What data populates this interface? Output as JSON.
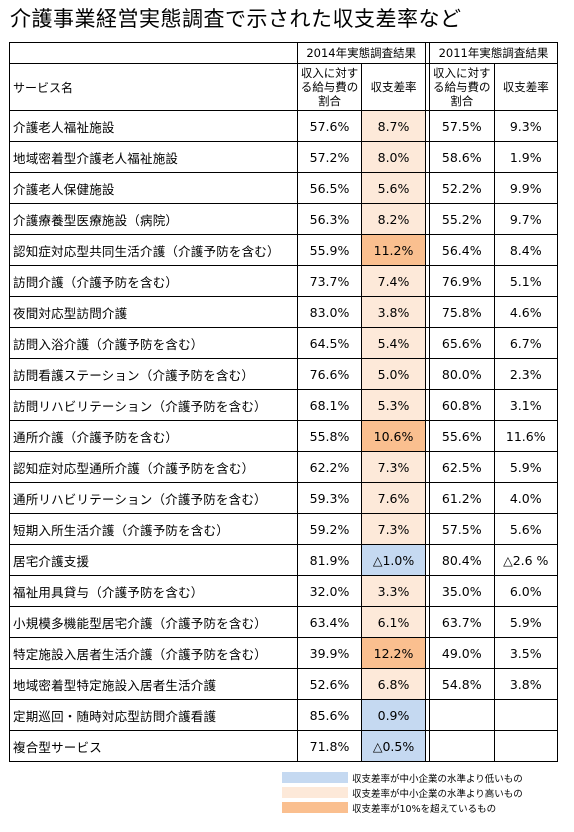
{
  "title": "介護事業経営実態調査で示された収支差率など",
  "colors": {
    "low": "#c5d9f1",
    "high": "#fde9d9",
    "over": "#fabf8f"
  },
  "header": {
    "service_label": "サービス名",
    "year_2014": "2014年実態調査結果",
    "year_2011": "2011年実態調査結果",
    "ratio_label": "収入に対する給与費の割合",
    "rate_label": "収支差率"
  },
  "rows": [
    {
      "name": "介護老人福祉施設",
      "r2014": "57.6%",
      "d2014": "8.7%",
      "hl": "high",
      "r2011": "57.5%",
      "d2011": "9.3%"
    },
    {
      "name": "地域密着型介護老人福祉施設",
      "r2014": "57.2%",
      "d2014": "8.0%",
      "hl": "high",
      "r2011": "58.6%",
      "d2011": "1.9%"
    },
    {
      "name": "介護老人保健施設",
      "r2014": "56.5%",
      "d2014": "5.6%",
      "hl": "high",
      "r2011": "52.2%",
      "d2011": "9.9%"
    },
    {
      "name": "介護療養型医療施設（病院）",
      "r2014": "56.3%",
      "d2014": "8.2%",
      "hl": "high",
      "r2011": "55.2%",
      "d2011": "9.7%"
    },
    {
      "name": "認知症対応型共同生活介護（介護予防を含む）",
      "r2014": "55.9%",
      "d2014": "11.2%",
      "hl": "over",
      "r2011": "56.4%",
      "d2011": "8.4%"
    },
    {
      "name": "訪問介護（介護予防を含む）",
      "r2014": "73.7%",
      "d2014": "7.4%",
      "hl": "high",
      "r2011": "76.9%",
      "d2011": "5.1%"
    },
    {
      "name": "夜間対応型訪問介護",
      "r2014": "83.0%",
      "d2014": "3.8%",
      "hl": "high",
      "r2011": "75.8%",
      "d2011": "4.6%"
    },
    {
      "name": "訪問入浴介護（介護予防を含む）",
      "r2014": "64.5%",
      "d2014": "5.4%",
      "hl": "high",
      "r2011": "65.6%",
      "d2011": "6.7%"
    },
    {
      "name": "訪問看護ステーション（介護予防を含む）",
      "r2014": "76.6%",
      "d2014": "5.0%",
      "hl": "high",
      "r2011": "80.0%",
      "d2011": "2.3%"
    },
    {
      "name": "訪問リハビリテーション（介護予防を含む）",
      "r2014": "68.1%",
      "d2014": "5.3%",
      "hl": "high",
      "r2011": "60.8%",
      "d2011": "3.1%"
    },
    {
      "name": "通所介護（介護予防を含む）",
      "r2014": "55.8%",
      "d2014": "10.6%",
      "hl": "over",
      "r2011": "55.6%",
      "d2011": "11.6%"
    },
    {
      "name": "認知症対応型通所介護（介護予防を含む）",
      "r2014": "62.2%",
      "d2014": "7.3%",
      "hl": "high",
      "r2011": "62.5%",
      "d2011": "5.9%"
    },
    {
      "name": "通所リハビリテーション（介護予防を含む）",
      "r2014": "59.3%",
      "d2014": "7.6%",
      "hl": "high",
      "r2011": "61.2%",
      "d2011": "4.0%"
    },
    {
      "name": "短期入所生活介護（介護予防を含む）",
      "r2014": "59.2%",
      "d2014": "7.3%",
      "hl": "high",
      "r2011": "57.5%",
      "d2011": "5.6%"
    },
    {
      "name": "居宅介護支援",
      "r2014": "81.9%",
      "d2014": "△1.0%",
      "hl": "low",
      "r2011": "80.4%",
      "d2011": "△2.6 %"
    },
    {
      "name": "福祉用具貸与（介護予防を含む）",
      "r2014": "32.0%",
      "d2014": "3.3%",
      "hl": "high",
      "r2011": "35.0%",
      "d2011": "6.0%"
    },
    {
      "name": "小規模多機能型居宅介護（介護予防を含む）",
      "r2014": "63.4%",
      "d2014": "6.1%",
      "hl": "high",
      "r2011": "63.7%",
      "d2011": "5.9%"
    },
    {
      "name": "特定施設入居者生活介護（介護予防を含む）",
      "r2014": "39.9%",
      "d2014": "12.2%",
      "hl": "over",
      "r2011": "49.0%",
      "d2011": "3.5%"
    },
    {
      "name": "地域密着型特定施設入居者生活介護",
      "r2014": "52.6%",
      "d2014": "6.8%",
      "hl": "high",
      "r2011": "54.8%",
      "d2011": "3.8%"
    },
    {
      "name": "定期巡回・随時対応型訪問介護看護",
      "r2014": "85.6%",
      "d2014": "0.9%",
      "hl": "low",
      "r2011": "",
      "d2011": ""
    },
    {
      "name": "複合型サービス",
      "r2014": "71.8%",
      "d2014": "△0.5%",
      "hl": "low",
      "r2011": "",
      "d2011": ""
    }
  ],
  "legend": [
    {
      "key": "low",
      "text": "収支差率が中小企業の水準より低いもの"
    },
    {
      "key": "high",
      "text": "収支差率が中小企業の水準より高いもの"
    },
    {
      "key": "over",
      "text": "収支差率が10%を超えているもの"
    }
  ]
}
